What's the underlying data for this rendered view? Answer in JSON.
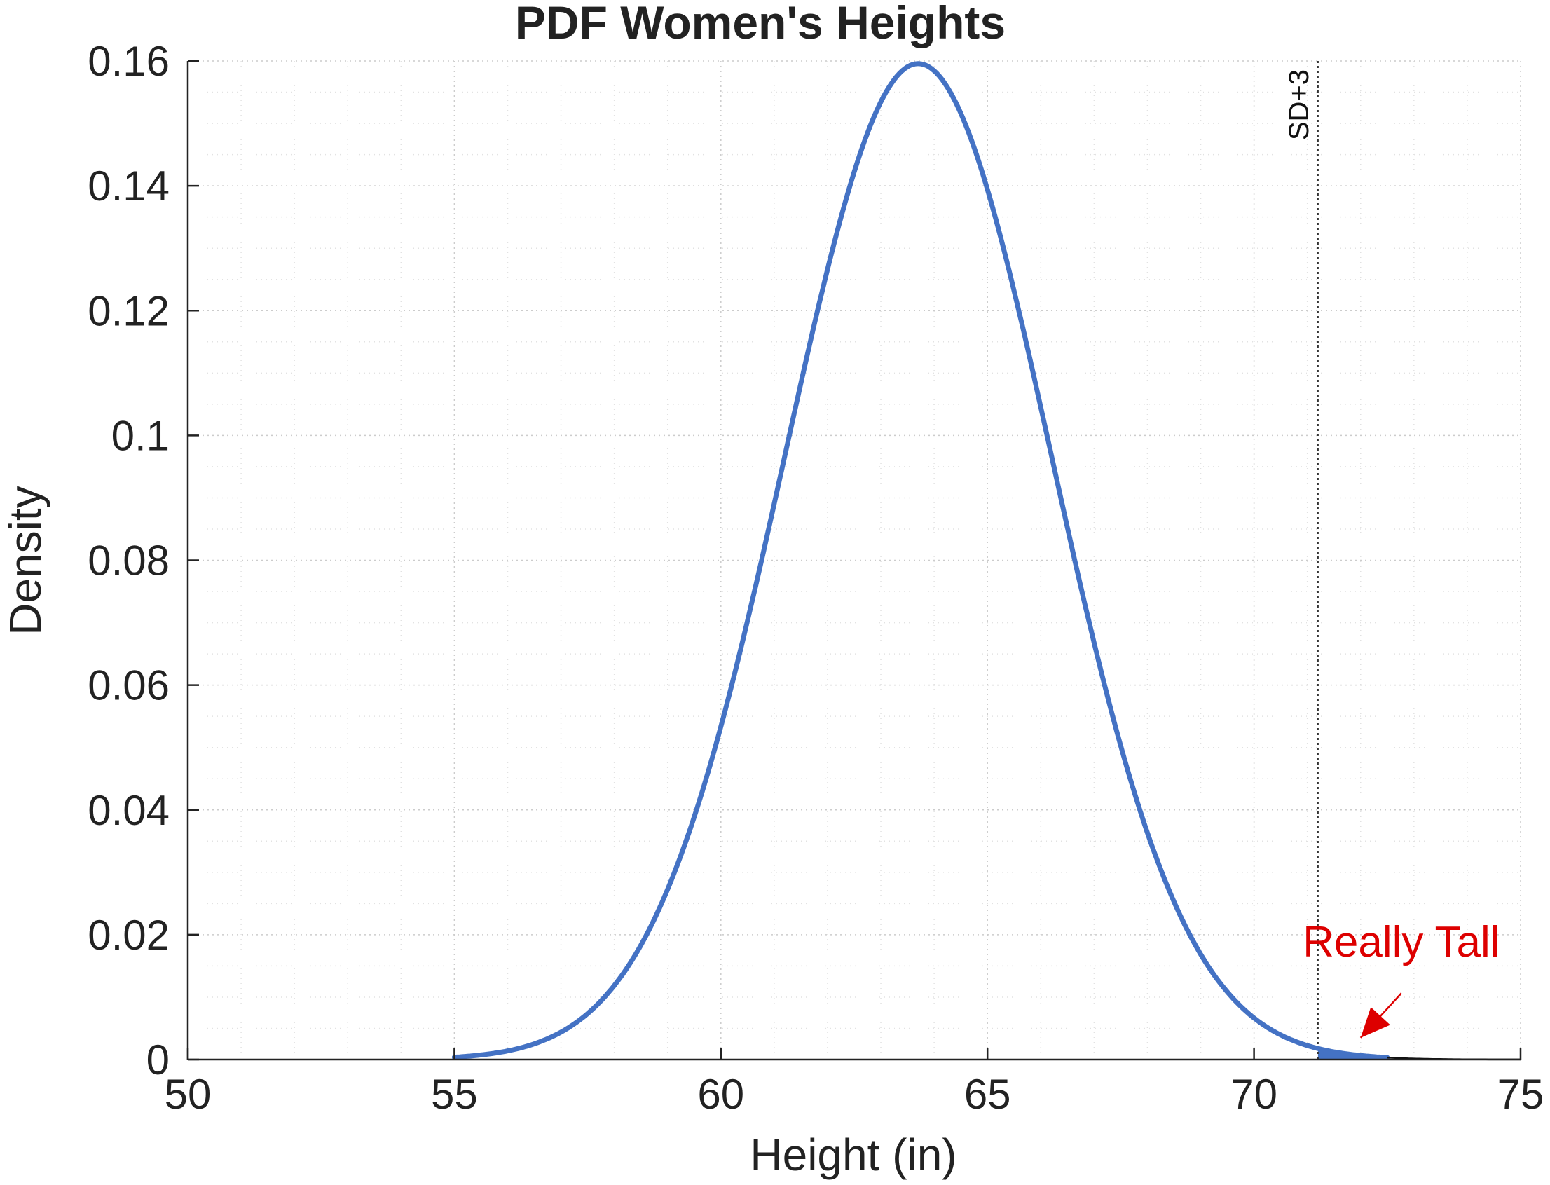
{
  "chart_data": {
    "type": "line",
    "title": "PDF Women's Heights",
    "xlabel": "Height (in)",
    "ylabel": "Density",
    "xlim": [
      50,
      75
    ],
    "ylim": [
      0,
      0.16
    ],
    "x_ticks": [
      50,
      55,
      60,
      65,
      70,
      75
    ],
    "x_tick_labels": [
      "50",
      "55",
      "60",
      "65",
      "70",
      "75"
    ],
    "y_ticks": [
      0,
      0.02,
      0.04,
      0.06,
      0.08,
      0.1,
      0.12,
      0.14,
      0.16
    ],
    "y_tick_labels": [
      "0",
      "0.02",
      "0.04",
      "0.06",
      "0.08",
      "0.1",
      "0.12",
      "0.14",
      "0.16"
    ],
    "grid": true,
    "series": [
      {
        "color": "#4472C4",
        "x": [
          55,
          56,
          57,
          58,
          59,
          60,
          61,
          62,
          63,
          63.7,
          64,
          65,
          66,
          67,
          68,
          69,
          70,
          71,
          71.2,
          72,
          72.5
        ],
        "y": [
          0.0004,
          0.0016,
          0.0059,
          0.0163,
          0.0359,
          0.0635,
          0.0955,
          0.1277,
          0.1515,
          0.1596,
          0.1579,
          0.1412,
          0.1159,
          0.0844,
          0.0536,
          0.0293,
          0.014,
          0.0057,
          0.0018,
          0.0026,
          0.0015
        ]
      }
    ],
    "tail": {
      "color": "#111111",
      "x": [
        72.5,
        73,
        74,
        75
      ],
      "y": [
        0.0015,
        0.001,
        0.0005,
        0.0002
      ]
    },
    "shaded_region": {
      "x_start": 71.2,
      "x_end": 72.5,
      "color": "#4472C4"
    },
    "vertical_line": {
      "x": 71.2,
      "label": "SD+3",
      "style": "dotted",
      "color": "#333333"
    },
    "annotation": {
      "text": "Really Tall",
      "color": "#dd0000",
      "text_x": 72.5,
      "text_y": 0.019,
      "arrow_from": [
        72.5,
        0.0095
      ],
      "arrow_to": [
        72.0,
        0.0035
      ]
    }
  }
}
